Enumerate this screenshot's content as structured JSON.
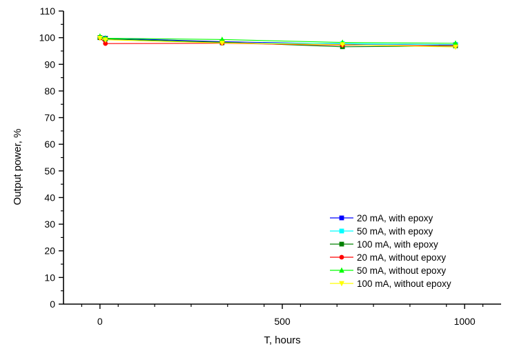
{
  "chart_data": {
    "type": "line",
    "title": "",
    "xlabel": "T, hours",
    "ylabel": "Output power, %",
    "xlim": [
      -100,
      1100
    ],
    "ylim": [
      0,
      110
    ],
    "xticks": [
      0,
      500,
      1000
    ],
    "yticks": [
      0,
      10,
      20,
      30,
      40,
      50,
      60,
      70,
      80,
      90,
      100,
      110
    ],
    "grid": false,
    "legend_position": "bottom-right",
    "series": [
      {
        "name": "20 mA, with epoxy",
        "color": "#0000ff",
        "marker": "square",
        "x": [
          0,
          15,
          335,
          665,
          975
        ],
        "y": [
          100.0,
          99.8,
          98.5,
          97.6,
          97.4
        ]
      },
      {
        "name": "50 mA, with epoxy",
        "color": "#00ffff",
        "marker": "square",
        "x": [
          0,
          15,
          335,
          665,
          975
        ],
        "y": [
          100.0,
          99.6,
          98.0,
          97.8,
          97.3
        ]
      },
      {
        "name": "100 mA, with epoxy",
        "color": "#008000",
        "marker": "square",
        "x": [
          0,
          15,
          335,
          665,
          975
        ],
        "y": [
          100.0,
          99.5,
          98.3,
          96.6,
          96.9
        ]
      },
      {
        "name": "20 mA, without epoxy",
        "color": "#ff0000",
        "marker": "circle",
        "x": [
          0,
          15,
          335,
          665,
          975
        ],
        "y": [
          100.0,
          97.8,
          97.9,
          97.2,
          97.0
        ]
      },
      {
        "name": "50 mA, without epoxy",
        "color": "#00ff00",
        "marker": "triangle-up",
        "x": [
          0,
          15,
          335,
          665,
          975
        ],
        "y": [
          100.5,
          99.8,
          99.3,
          98.2,
          97.9
        ]
      },
      {
        "name": "100 mA, without epoxy",
        "color": "#ffff00",
        "marker": "triangle-down",
        "x": [
          0,
          15,
          335,
          665,
          975
        ],
        "y": [
          99.8,
          99.2,
          98.0,
          97.4,
          96.5
        ]
      }
    ]
  }
}
